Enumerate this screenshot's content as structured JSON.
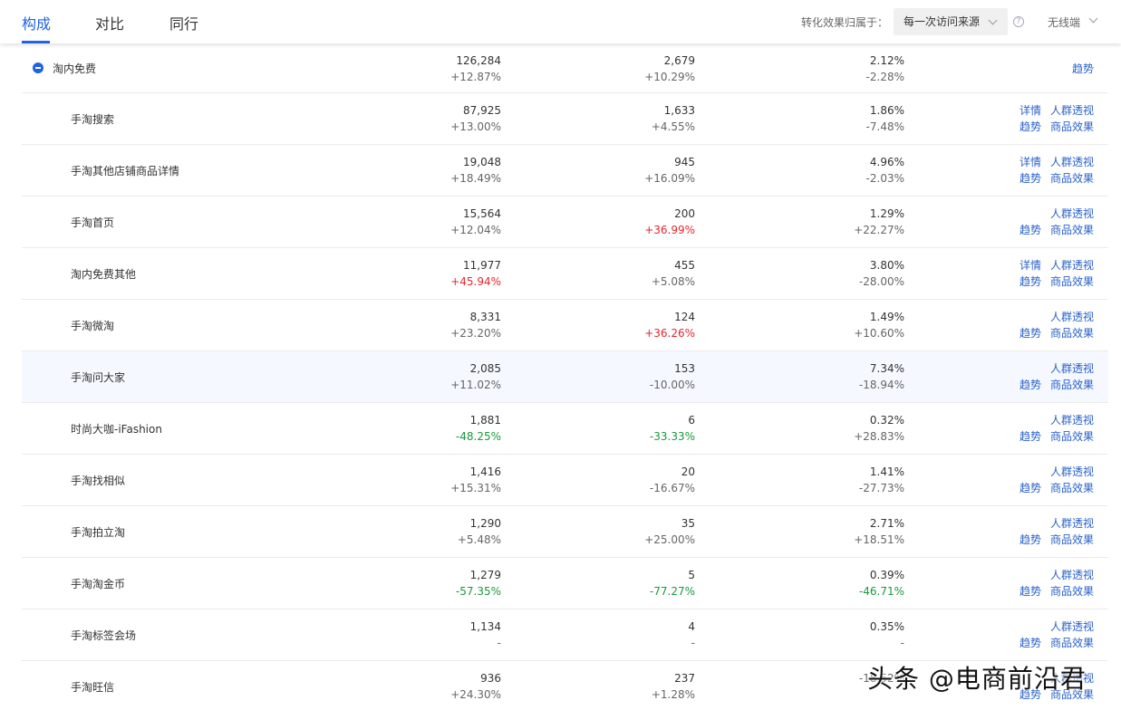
{
  "tabs": [
    {
      "label": "构成",
      "active": true
    },
    {
      "label": "对比",
      "active": false
    },
    {
      "label": "同行",
      "active": false
    }
  ],
  "attribution": {
    "label": "转化效果归属于：",
    "value": "每一次访问来源"
  },
  "device": {
    "value": "无线端"
  },
  "parent_row": {
    "name": "淘内免费",
    "c1": {
      "value": "126,284",
      "change": "+12.87%"
    },
    "c2": {
      "value": "2,679",
      "change": "+10.29%"
    },
    "c3": {
      "value": "2.12%",
      "change": "-2.28%"
    },
    "action": "趋势"
  },
  "rows": [
    {
      "name": "手淘搜索",
      "c1": {
        "value": "87,925",
        "change": "+13.00%",
        "tone": ""
      },
      "c2": {
        "value": "1,633",
        "change": "+4.55%",
        "tone": ""
      },
      "c3": {
        "value": "1.86%",
        "change": "-7.48%",
        "tone": ""
      },
      "detail": "详情"
    },
    {
      "name": "手淘其他店铺商品详情",
      "c1": {
        "value": "19,048",
        "change": "+18.49%",
        "tone": ""
      },
      "c2": {
        "value": "945",
        "change": "+16.09%",
        "tone": ""
      },
      "c3": {
        "value": "4.96%",
        "change": "-2.03%",
        "tone": ""
      },
      "detail": "详情"
    },
    {
      "name": "手淘首页",
      "c1": {
        "value": "15,564",
        "change": "+12.04%",
        "tone": ""
      },
      "c2": {
        "value": "200",
        "change": "+36.99%",
        "tone": "red"
      },
      "c3": {
        "value": "1.29%",
        "change": "+22.27%",
        "tone": ""
      },
      "detail": ""
    },
    {
      "name": "淘内免费其他",
      "c1": {
        "value": "11,977",
        "change": "+45.94%",
        "tone": "red"
      },
      "c2": {
        "value": "455",
        "change": "+5.08%",
        "tone": ""
      },
      "c3": {
        "value": "3.80%",
        "change": "-28.00%",
        "tone": ""
      },
      "detail": "详情"
    },
    {
      "name": "手淘微淘",
      "c1": {
        "value": "8,331",
        "change": "+23.20%",
        "tone": ""
      },
      "c2": {
        "value": "124",
        "change": "+36.26%",
        "tone": "red"
      },
      "c3": {
        "value": "1.49%",
        "change": "+10.60%",
        "tone": ""
      },
      "detail": ""
    },
    {
      "name": "手淘问大家",
      "c1": {
        "value": "2,085",
        "change": "+11.02%",
        "tone": ""
      },
      "c2": {
        "value": "153",
        "change": "-10.00%",
        "tone": ""
      },
      "c3": {
        "value": "7.34%",
        "change": "-18.94%",
        "tone": ""
      },
      "detail": "",
      "highlight": true
    },
    {
      "name": "时尚大咖-iFashion",
      "c1": {
        "value": "1,881",
        "change": "-48.25%",
        "tone": "green"
      },
      "c2": {
        "value": "6",
        "change": "-33.33%",
        "tone": "green"
      },
      "c3": {
        "value": "0.32%",
        "change": "+28.83%",
        "tone": ""
      },
      "detail": ""
    },
    {
      "name": "手淘找相似",
      "c1": {
        "value": "1,416",
        "change": "+15.31%",
        "tone": ""
      },
      "c2": {
        "value": "20",
        "change": "-16.67%",
        "tone": ""
      },
      "c3": {
        "value": "1.41%",
        "change": "-27.73%",
        "tone": ""
      },
      "detail": ""
    },
    {
      "name": "手淘拍立淘",
      "c1": {
        "value": "1,290",
        "change": "+5.48%",
        "tone": ""
      },
      "c2": {
        "value": "35",
        "change": "+25.00%",
        "tone": ""
      },
      "c3": {
        "value": "2.71%",
        "change": "+18.51%",
        "tone": ""
      },
      "detail": ""
    },
    {
      "name": "手淘淘金币",
      "c1": {
        "value": "1,279",
        "change": "-57.35%",
        "tone": "green"
      },
      "c2": {
        "value": "5",
        "change": "-77.27%",
        "tone": "green"
      },
      "c3": {
        "value": "0.39%",
        "change": "-46.71%",
        "tone": "green"
      },
      "detail": ""
    },
    {
      "name": "手淘标签会场",
      "c1": {
        "value": "1,134",
        "change": "-",
        "tone": ""
      },
      "c2": {
        "value": "4",
        "change": "-",
        "tone": ""
      },
      "c3": {
        "value": "0.35%",
        "change": "-",
        "tone": ""
      },
      "detail": ""
    },
    {
      "name": "手淘旺信",
      "c1": {
        "value": "936",
        "change": "+24.30%",
        "tone": ""
      },
      "c2": {
        "value": "237",
        "change": "+1.28%",
        "tone": ""
      },
      "c3": {
        "value": "",
        "change": "-18.52%",
        "tone": ""
      },
      "detail": ""
    }
  ],
  "row_actions": {
    "crowd": "人群透视",
    "trend": "趋势",
    "product": "商品效果"
  },
  "watermark": "头条 @电商前沿君",
  "colors": {
    "accent": "#2062e6",
    "link": "#2a62c9",
    "up": "#e8262d",
    "down": "#1a9a3b"
  }
}
